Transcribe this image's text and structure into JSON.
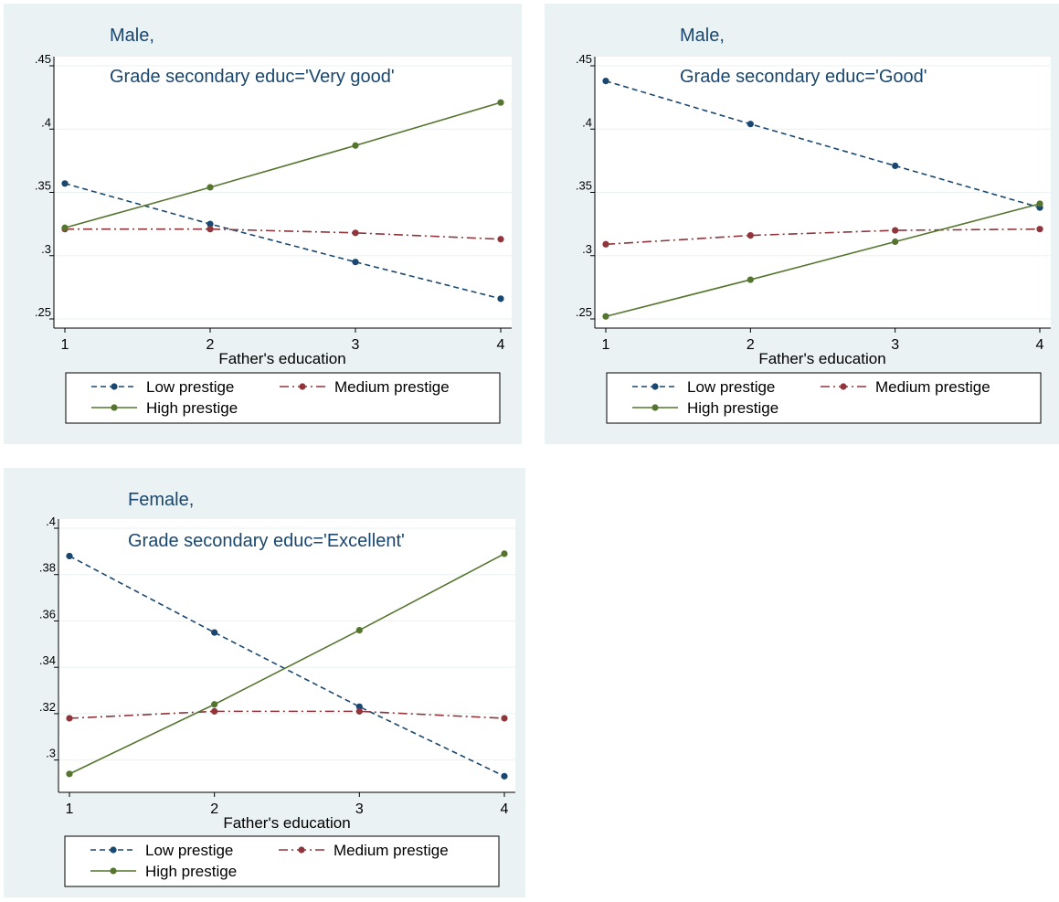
{
  "colors": {
    "panel_background": "#eaf2f3",
    "plot_background": "#ffffff",
    "gridline": "#eaf2f3",
    "low_prestige": "#1a476f",
    "medium_prestige": "#90353b",
    "high_prestige": "#55752f",
    "title_text": "#1a476f"
  },
  "chart_data": [
    {
      "type": "line",
      "title": "Male,",
      "subtitle": "Grade secondary educ='Very good'",
      "xlabel": "Father's education",
      "ylabel": "",
      "x": [
        1,
        2,
        3,
        4
      ],
      "xticks": [
        "1",
        "2",
        "3",
        "4"
      ],
      "yticks": [
        ".25",
        ".3",
        ".35",
        ".4",
        ".45"
      ],
      "ylim": [
        0.25,
        0.45
      ],
      "grid": true,
      "legend_position": "bottom",
      "series": [
        {
          "name": "Low prestige",
          "values": [
            0.357,
            0.325,
            0.295,
            0.266
          ],
          "style": "dashed",
          "color": "#1a476f"
        },
        {
          "name": "Medium prestige",
          "values": [
            0.321,
            0.321,
            0.318,
            0.313
          ],
          "style": "dash-dot",
          "color": "#90353b"
        },
        {
          "name": "High prestige",
          "values": [
            0.322,
            0.354,
            0.387,
            0.421
          ],
          "style": "solid",
          "color": "#55752f"
        }
      ]
    },
    {
      "type": "line",
      "title": "Male,",
      "subtitle": "Grade secondary educ='Good'",
      "xlabel": "Father's education",
      "ylabel": "",
      "x": [
        1,
        2,
        3,
        4
      ],
      "xticks": [
        "1",
        "2",
        "3",
        "4"
      ],
      "yticks": [
        ".25",
        ".3",
        ".35",
        ".4",
        ".45"
      ],
      "ylim": [
        0.25,
        0.45
      ],
      "grid": true,
      "legend_position": "bottom",
      "series": [
        {
          "name": "Low prestige",
          "values": [
            0.438,
            0.404,
            0.371,
            0.338
          ],
          "style": "dashed",
          "color": "#1a476f"
        },
        {
          "name": "Medium prestige",
          "values": [
            0.309,
            0.316,
            0.32,
            0.321
          ],
          "style": "dash-dot",
          "color": "#90353b"
        },
        {
          "name": "High prestige",
          "values": [
            0.252,
            0.281,
            0.311,
            0.341
          ],
          "style": "solid",
          "color": "#55752f"
        }
      ]
    },
    {
      "type": "line",
      "title": "Female,",
      "subtitle": "Grade secondary educ='Excellent'",
      "xlabel": "Father's education",
      "ylabel": "",
      "x": [
        1,
        2,
        3,
        4
      ],
      "xticks": [
        "1",
        "2",
        "3",
        "4"
      ],
      "yticks": [
        ".3",
        ".32",
        ".34",
        ".36",
        ".38",
        ".4"
      ],
      "ylim": [
        0.29,
        0.4
      ],
      "grid": true,
      "legend_position": "bottom",
      "series": [
        {
          "name": "Low prestige",
          "values": [
            0.388,
            0.355,
            0.323,
            0.293
          ],
          "style": "dashed",
          "color": "#1a476f"
        },
        {
          "name": "Medium prestige",
          "values": [
            0.318,
            0.321,
            0.321,
            0.318
          ],
          "style": "dash-dot",
          "color": "#90353b"
        },
        {
          "name": "High prestige",
          "values": [
            0.294,
            0.324,
            0.356,
            0.389
          ],
          "style": "solid",
          "color": "#55752f"
        }
      ]
    }
  ]
}
